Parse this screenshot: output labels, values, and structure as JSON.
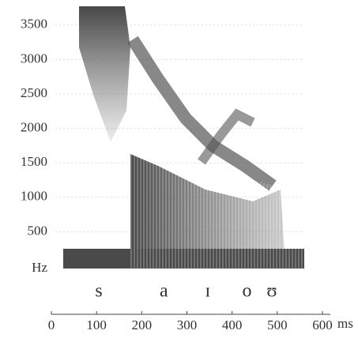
{
  "chart_data": {
    "type": "spectrogram",
    "y_unit": "Hz",
    "x_unit": "ms",
    "ylim": [
      0,
      3750
    ],
    "yticks": [
      500,
      1000,
      1500,
      2000,
      2500,
      3000,
      3500
    ],
    "xlim": [
      0,
      600
    ],
    "xticks": [
      0,
      100,
      200,
      300,
      400,
      500,
      600
    ],
    "grid": true,
    "color": "#3a3a3a",
    "segments": [
      {
        "label": "s",
        "time": 105
      },
      {
        "label": "a",
        "time": 249
      },
      {
        "label": "ɪ",
        "time": 346
      },
      {
        "label": "o",
        "time": 433
      },
      {
        "label": "ʊ",
        "time": 488
      }
    ]
  }
}
